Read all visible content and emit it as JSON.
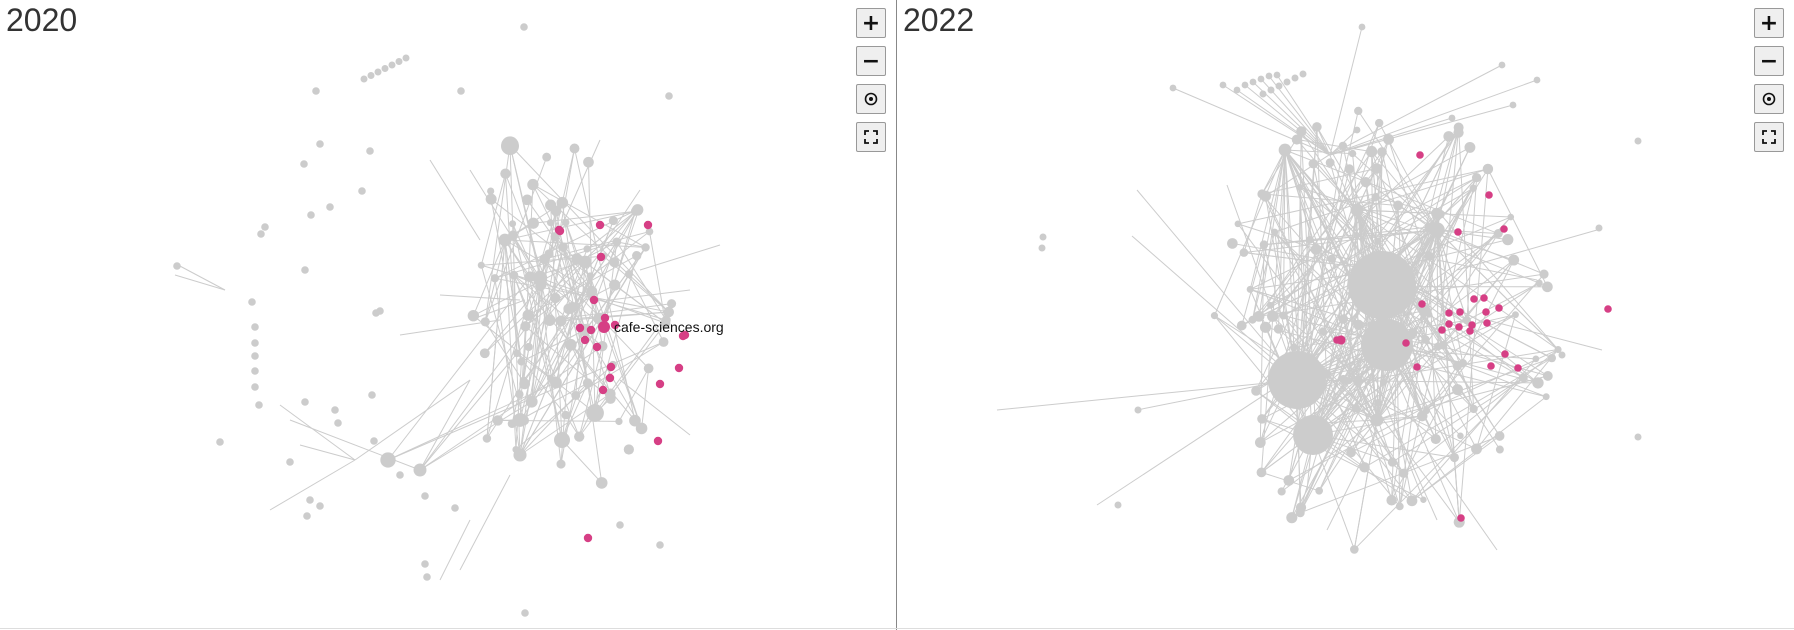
{
  "panels": [
    {
      "year": "2020",
      "highlight_label": "cafe-sciences.org",
      "controls": {
        "zoom_in": "+",
        "zoom_out": "−",
        "reset_icon": "target-icon",
        "fullscreen_icon": "fullscreen-icon"
      }
    },
    {
      "year": "2022",
      "controls": {
        "zoom_in": "+",
        "zoom_out": "−",
        "reset_icon": "target-icon",
        "fullscreen_icon": "fullscreen-icon"
      }
    }
  ],
  "colors": {
    "node": "#cccccc",
    "edge": "#cccccc",
    "highlight": "#d63f85",
    "divider": "#888888"
  }
}
